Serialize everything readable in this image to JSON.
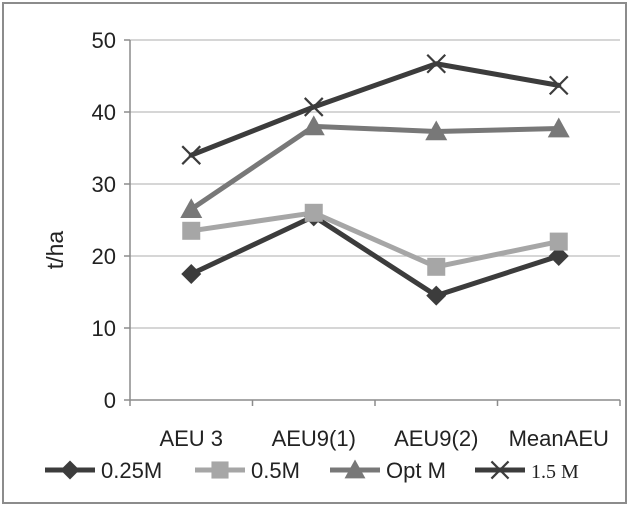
{
  "chart_data": {
    "type": "line",
    "title": "",
    "xlabel": "",
    "ylabel": "t/ha",
    "ylim": [
      0,
      50
    ],
    "yticks": [
      0,
      10,
      20,
      30,
      40,
      50
    ],
    "grid": true,
    "legend_position": "bottom",
    "categories": [
      "AEU 3",
      "AEU9(1)",
      "AEU9(2)",
      "MeanAEU"
    ],
    "series": [
      {
        "name": "0.25M",
        "marker": "diamond",
        "color": "#3c3c3c",
        "values": [
          17.5,
          25.5,
          14.5,
          20.0
        ]
      },
      {
        "name": "0.5M",
        "marker": "square",
        "color": "#a6a6a6",
        "values": [
          23.5,
          26.0,
          18.5,
          22.0
        ]
      },
      {
        "name": "Opt M",
        "marker": "triangle",
        "color": "#787878",
        "values": [
          26.5,
          38.0,
          37.3,
          37.7
        ]
      },
      {
        "name": "1.5 M",
        "marker": "x",
        "color": "#3c3c3c",
        "values": [
          34.0,
          40.7,
          46.7,
          43.7
        ]
      }
    ]
  }
}
